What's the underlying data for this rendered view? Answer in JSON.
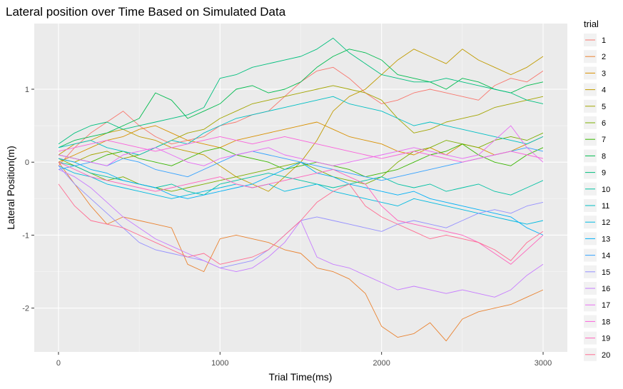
{
  "chart_data": {
    "type": "line",
    "title": "Lateral position over Time Based on Simulated Data",
    "xlabel": "Trial Time(ms)",
    "ylabel": "Lateral Position(m)",
    "xlim": [
      -150,
      3150
    ],
    "ylim": [
      -2.6,
      1.9
    ],
    "xticks": [
      0,
      1000,
      2000,
      3000
    ],
    "xtick_labels": [
      "0",
      "1000",
      "2000",
      "3000"
    ],
    "yticks": [
      -2,
      -1,
      0,
      1
    ],
    "ytick_labels": [
      "-2",
      "-1",
      "0",
      "1"
    ],
    "grid": true,
    "background": "#ebebeb",
    "legend_title": "trial",
    "legend_position": "right",
    "x": [
      0,
      100,
      200,
      300,
      400,
      500,
      600,
      700,
      800,
      900,
      1000,
      1100,
      1200,
      1300,
      1400,
      1500,
      1600,
      1700,
      1800,
      1900,
      2000,
      2100,
      2200,
      2300,
      2400,
      2500,
      2600,
      2700,
      2800,
      2900,
      3000
    ],
    "series": [
      {
        "name": "1",
        "color": "#F8766D",
        "values": [
          -0.05,
          0.2,
          0.4,
          0.55,
          0.7,
          0.5,
          0.35,
          0.25,
          0.3,
          0.35,
          0.5,
          0.55,
          0.65,
          0.7,
          0.9,
          1.1,
          1.25,
          1.3,
          1.15,
          0.95,
          0.8,
          0.85,
          0.95,
          1.0,
          0.95,
          0.9,
          0.85,
          1.05,
          1.15,
          1.1,
          1.25
        ]
      },
      {
        "name": "2",
        "color": "#EA8331",
        "values": [
          0.0,
          -0.3,
          -0.6,
          -0.85,
          -0.75,
          -0.8,
          -0.85,
          -0.9,
          -1.4,
          -1.5,
          -1.05,
          -1.0,
          -1.05,
          -1.1,
          -1.2,
          -1.25,
          -1.45,
          -1.5,
          -1.6,
          -1.8,
          -2.25,
          -2.4,
          -2.35,
          -2.2,
          -2.45,
          -2.15,
          -2.05,
          -2.0,
          -1.95,
          -1.85,
          -1.75
        ]
      },
      {
        "name": "3",
        "color": "#D89000",
        "values": [
          0.0,
          0.1,
          0.2,
          0.3,
          0.35,
          0.45,
          0.5,
          0.4,
          0.3,
          0.25,
          0.2,
          0.3,
          0.35,
          0.4,
          0.45,
          0.5,
          0.55,
          0.45,
          0.35,
          0.3,
          0.25,
          0.15,
          0.1,
          0.2,
          0.1,
          0.25,
          0.2,
          0.1,
          0.15,
          0.25,
          0.35
        ]
      },
      {
        "name": "4",
        "color": "#C09B00",
        "values": [
          0.1,
          0.25,
          0.3,
          0.4,
          0.45,
          0.35,
          0.3,
          0.2,
          0.15,
          0.1,
          -0.05,
          -0.2,
          -0.3,
          -0.4,
          -0.2,
          0.0,
          0.3,
          0.7,
          0.9,
          1.0,
          1.2,
          1.4,
          1.55,
          1.45,
          1.35,
          1.55,
          1.4,
          1.3,
          1.2,
          1.3,
          1.45
        ]
      },
      {
        "name": "5",
        "color": "#A3A500",
        "values": [
          0.05,
          0.0,
          0.1,
          0.15,
          0.05,
          0.1,
          0.2,
          0.3,
          0.4,
          0.45,
          0.6,
          0.7,
          0.8,
          0.85,
          0.9,
          0.95,
          1.0,
          1.05,
          1.0,
          0.95,
          0.85,
          0.6,
          0.4,
          0.45,
          0.55,
          0.6,
          0.65,
          0.75,
          0.8,
          0.85,
          0.9
        ]
      },
      {
        "name": "6",
        "color": "#7CAE00",
        "values": [
          0.05,
          -0.05,
          -0.15,
          -0.25,
          -0.2,
          -0.3,
          -0.35,
          -0.4,
          -0.35,
          -0.3,
          -0.25,
          -0.2,
          -0.15,
          -0.1,
          -0.05,
          0.0,
          -0.1,
          -0.2,
          -0.25,
          -0.3,
          -0.2,
          0.0,
          0.15,
          0.2,
          0.3,
          0.25,
          0.2,
          0.3,
          0.35,
          0.3,
          0.4
        ]
      },
      {
        "name": "7",
        "color": "#39B600",
        "values": [
          0.1,
          0.05,
          0.0,
          0.1,
          0.15,
          0.05,
          0.0,
          -0.05,
          0.05,
          0.15,
          0.2,
          0.1,
          0.05,
          0.0,
          -0.1,
          -0.05,
          0.0,
          -0.05,
          -0.1,
          -0.2,
          -0.15,
          -0.1,
          0.0,
          0.1,
          0.15,
          0.25,
          0.1,
          0.0,
          -0.05,
          0.1,
          0.2
        ]
      },
      {
        "name": "8",
        "color": "#00BB4E",
        "values": [
          0.2,
          0.3,
          0.35,
          0.4,
          0.5,
          0.6,
          0.95,
          0.85,
          0.6,
          0.7,
          0.8,
          1.0,
          1.05,
          0.95,
          1.0,
          1.1,
          1.3,
          1.45,
          1.55,
          1.5,
          1.4,
          1.2,
          1.15,
          1.1,
          1.0,
          1.15,
          1.1,
          1.0,
          0.95,
          1.05,
          1.1
        ]
      },
      {
        "name": "9",
        "color": "#00BF7D",
        "values": [
          0.25,
          0.4,
          0.5,
          0.55,
          0.45,
          0.5,
          0.55,
          0.6,
          0.65,
          0.75,
          1.15,
          1.2,
          1.3,
          1.35,
          1.4,
          1.45,
          1.55,
          1.7,
          1.5,
          1.35,
          1.2,
          1.15,
          1.1,
          1.1,
          1.15,
          1.1,
          1.05,
          1.0,
          0.95,
          0.85,
          0.8
        ]
      },
      {
        "name": "10",
        "color": "#00C1A3",
        "values": [
          0.0,
          -0.05,
          -0.15,
          -0.2,
          -0.25,
          -0.3,
          -0.35,
          -0.3,
          -0.4,
          -0.45,
          -0.3,
          -0.25,
          -0.2,
          -0.15,
          -0.2,
          -0.25,
          -0.3,
          -0.35,
          -0.3,
          -0.25,
          -0.2,
          -0.3,
          -0.35,
          -0.3,
          -0.4,
          -0.35,
          -0.3,
          -0.4,
          -0.45,
          -0.35,
          -0.25
        ]
      },
      {
        "name": "11",
        "color": "#00BFC4",
        "values": [
          0.2,
          0.25,
          0.3,
          0.2,
          0.15,
          0.1,
          0.2,
          0.3,
          0.25,
          0.4,
          0.5,
          0.6,
          0.65,
          0.7,
          0.75,
          0.8,
          0.85,
          0.9,
          0.8,
          0.75,
          0.7,
          0.6,
          0.5,
          0.55,
          0.5,
          0.45,
          0.4,
          0.35,
          0.3,
          0.25,
          0.35
        ]
      },
      {
        "name": "12",
        "color": "#00BAE0",
        "values": [
          -0.05,
          -0.15,
          -0.2,
          -0.3,
          -0.35,
          -0.4,
          -0.45,
          -0.5,
          -0.45,
          -0.4,
          -0.35,
          -0.3,
          -0.35,
          -0.3,
          -0.4,
          -0.35,
          -0.3,
          -0.4,
          -0.45,
          -0.5,
          -0.55,
          -0.6,
          -0.5,
          -0.55,
          -0.6,
          -0.65,
          -0.7,
          -0.75,
          -0.8,
          -0.85,
          -0.8
        ]
      },
      {
        "name": "13",
        "color": "#00B0F6",
        "values": [
          0.05,
          0.0,
          -0.1,
          -0.15,
          -0.25,
          -0.3,
          -0.35,
          -0.45,
          -0.5,
          -0.45,
          -0.4,
          -0.35,
          -0.3,
          -0.2,
          -0.1,
          0.0,
          -0.15,
          -0.2,
          -0.3,
          -0.35,
          -0.4,
          -0.45,
          -0.4,
          -0.5,
          -0.55,
          -0.6,
          -0.65,
          -0.7,
          -0.75,
          -0.9,
          -1.0
        ]
      },
      {
        "name": "14",
        "color": "#35A2FF",
        "values": [
          -0.1,
          -0.05,
          0.0,
          -0.05,
          0.05,
          0.0,
          -0.1,
          -0.15,
          -0.2,
          -0.1,
          0.0,
          0.1,
          0.15,
          0.1,
          0.05,
          0.0,
          -0.05,
          -0.1,
          -0.15,
          -0.2,
          -0.25,
          -0.2,
          -0.15,
          -0.1,
          -0.05,
          0.0,
          0.05,
          0.1,
          0.15,
          0.2,
          0.15
        ]
      },
      {
        "name": "15",
        "color": "#9590FF",
        "values": [
          -0.05,
          -0.3,
          -0.5,
          -0.7,
          -0.9,
          -1.1,
          -1.2,
          -1.25,
          -1.3,
          -1.35,
          -1.45,
          -1.4,
          -1.35,
          -1.2,
          -1.0,
          -0.8,
          -0.75,
          -0.8,
          -0.85,
          -0.9,
          -0.95,
          -0.85,
          -0.8,
          -0.85,
          -0.9,
          -0.8,
          -0.7,
          -0.65,
          -0.7,
          -0.6,
          -0.55
        ]
      },
      {
        "name": "16",
        "color": "#C77CFF",
        "values": [
          -0.1,
          -0.2,
          -0.35,
          -0.55,
          -0.75,
          -0.9,
          -1.05,
          -1.15,
          -1.25,
          -1.35,
          -1.45,
          -1.5,
          -1.45,
          -1.3,
          -1.1,
          -0.8,
          -1.3,
          -1.4,
          -1.45,
          -1.55,
          -1.65,
          -1.75,
          -1.7,
          -1.75,
          -1.8,
          -1.75,
          -1.8,
          -1.85,
          -1.75,
          -1.55,
          -1.4
        ]
      },
      {
        "name": "17",
        "color": "#E76BF3",
        "values": [
          0.1,
          0.05,
          0.0,
          -0.05,
          0.1,
          0.15,
          0.2,
          0.1,
          0.0,
          -0.05,
          0.05,
          0.1,
          0.15,
          0.2,
          0.1,
          0.05,
          0.0,
          -0.05,
          0.0,
          0.05,
          0.1,
          0.15,
          0.2,
          0.15,
          0.1,
          0.05,
          0.1,
          0.3,
          0.5,
          0.2,
          0.0
        ]
      },
      {
        "name": "18",
        "color": "#FA62DB",
        "values": [
          0.15,
          0.2,
          0.25,
          0.3,
          0.25,
          0.2,
          0.15,
          0.2,
          0.25,
          0.3,
          0.35,
          0.3,
          0.25,
          0.3,
          0.35,
          0.3,
          0.25,
          0.2,
          0.15,
          0.1,
          0.05,
          0.1,
          0.15,
          0.1,
          0.05,
          0.0,
          0.05,
          0.1,
          0.15,
          0.1,
          0.05
        ]
      },
      {
        "name": "19",
        "color": "#FF62BC",
        "values": [
          0.0,
          -0.1,
          -0.2,
          -0.25,
          -0.3,
          -0.35,
          -0.4,
          -0.35,
          -0.3,
          -0.25,
          -0.2,
          -0.3,
          -0.35,
          -0.3,
          -0.25,
          -0.2,
          -0.15,
          -0.1,
          -0.2,
          -0.3,
          -0.6,
          -0.8,
          -0.85,
          -0.9,
          -0.95,
          -1.0,
          -1.1,
          -1.25,
          -1.4,
          -1.2,
          -1.0
        ]
      },
      {
        "name": "20",
        "color": "#FF6C91",
        "values": [
          -0.3,
          -0.6,
          -0.8,
          -0.85,
          -0.9,
          -1.0,
          -1.1,
          -1.2,
          -1.3,
          -1.25,
          -1.4,
          -1.35,
          -1.3,
          -1.2,
          -1.0,
          -0.8,
          -0.55,
          -0.4,
          -0.3,
          -0.6,
          -0.75,
          -0.85,
          -0.95,
          -1.05,
          -1.0,
          -1.05,
          -1.1,
          -1.2,
          -1.35,
          -1.1,
          -0.95
        ]
      }
    ]
  }
}
